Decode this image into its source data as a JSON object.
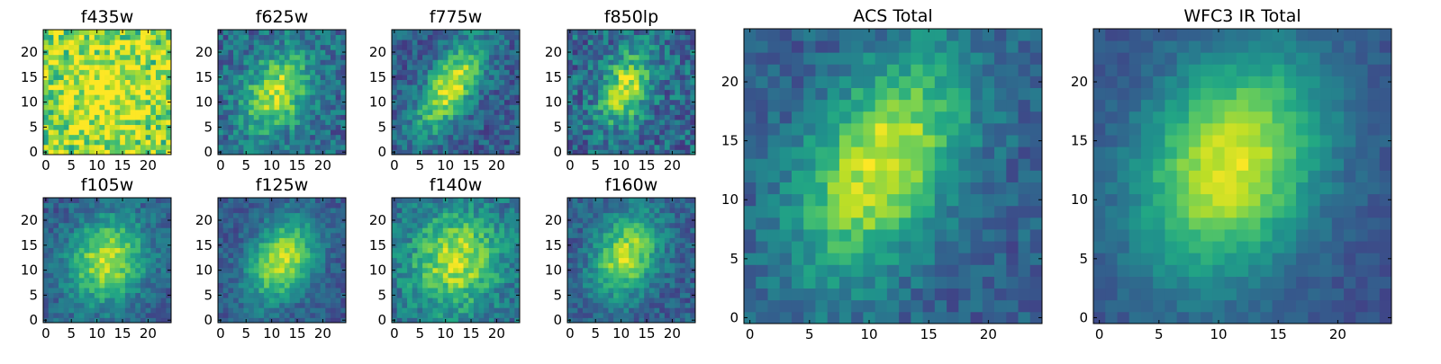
{
  "figure": {
    "colormap": "viridis",
    "background": "#ffffff",
    "pixel_grid": [
      25,
      25
    ]
  },
  "chart_data": [
    {
      "type": "heatmap",
      "title": "f435w",
      "xticks": [
        "0",
        "5",
        "10",
        "15",
        "20"
      ],
      "yticks": [
        "0",
        "5",
        "10",
        "15",
        "20"
      ],
      "center": [
        12,
        12
      ],
      "spread": [
        5,
        6
      ],
      "peak": 0.25,
      "base": 0.8,
      "noise": 0.5,
      "tilt": 0.0,
      "seed": 3
    },
    {
      "type": "heatmap",
      "title": "f625w",
      "xticks": [
        "0",
        "5",
        "10",
        "15",
        "20"
      ],
      "yticks": [
        "0",
        "5",
        "10",
        "15",
        "20"
      ],
      "center": [
        11,
        12
      ],
      "spread": [
        4,
        6
      ],
      "peak": 0.55,
      "base": 0.35,
      "noise": 0.35,
      "tilt": 0.45,
      "seed": 7
    },
    {
      "type": "heatmap",
      "title": "f775w",
      "xticks": [
        "0",
        "5",
        "10",
        "15",
        "20"
      ],
      "yticks": [
        "0",
        "5",
        "10",
        "15",
        "20"
      ],
      "center": [
        11,
        13
      ],
      "spread": [
        3,
        7
      ],
      "peak": 0.65,
      "base": 0.3,
      "noise": 0.3,
      "tilt": 0.55,
      "seed": 11
    },
    {
      "type": "heatmap",
      "title": "f850lp",
      "xticks": [
        "0",
        "5",
        "10",
        "15",
        "20"
      ],
      "yticks": [
        "0",
        "5",
        "10",
        "15",
        "20"
      ],
      "center": [
        11,
        13
      ],
      "spread": [
        3,
        5
      ],
      "peak": 0.6,
      "base": 0.35,
      "noise": 0.4,
      "tilt": 0.4,
      "seed": 13
    },
    {
      "type": "heatmap",
      "title": "f105w",
      "xticks": [
        "0",
        "5",
        "10",
        "15",
        "20"
      ],
      "yticks": [
        "0",
        "5",
        "10",
        "15",
        "20"
      ],
      "center": [
        12,
        12
      ],
      "spread": [
        5,
        6
      ],
      "peak": 0.6,
      "base": 0.3,
      "noise": 0.25,
      "tilt": 0.35,
      "seed": 17
    },
    {
      "type": "heatmap",
      "title": "f125w",
      "xticks": [
        "0",
        "5",
        "10",
        "15",
        "20"
      ],
      "yticks": [
        "0",
        "5",
        "10",
        "15",
        "20"
      ],
      "center": [
        12,
        12
      ],
      "spread": [
        4,
        6
      ],
      "peak": 0.65,
      "base": 0.28,
      "noise": 0.22,
      "tilt": 0.45,
      "seed": 19
    },
    {
      "type": "heatmap",
      "title": "f140w",
      "xticks": [
        "0",
        "5",
        "10",
        "15",
        "20"
      ],
      "yticks": [
        "0",
        "5",
        "10",
        "15",
        "20"
      ],
      "center": [
        12,
        12
      ],
      "spread": [
        6,
        7
      ],
      "peak": 0.55,
      "base": 0.35,
      "noise": 0.3,
      "tilt": 0.3,
      "seed": 23
    },
    {
      "type": "heatmap",
      "title": "f160w",
      "xticks": [
        "0",
        "5",
        "10",
        "15",
        "20"
      ],
      "yticks": [
        "0",
        "5",
        "10",
        "15",
        "20"
      ],
      "center": [
        11,
        13
      ],
      "spread": [
        4,
        6
      ],
      "peak": 0.6,
      "base": 0.3,
      "noise": 0.25,
      "tilt": 0.4,
      "seed": 29
    },
    {
      "type": "heatmap",
      "title": "ACS Total",
      "xticks": [
        "0",
        "5",
        "10",
        "15",
        "20"
      ],
      "yticks": [
        "0",
        "5",
        "10",
        "15",
        "20"
      ],
      "center": [
        11,
        13
      ],
      "spread": [
        4,
        7
      ],
      "peak": 0.65,
      "base": 0.3,
      "noise": 0.22,
      "tilt": 0.5,
      "seed": 31
    },
    {
      "type": "heatmap",
      "title": "WFC3 IR Total",
      "xticks": [
        "0",
        "5",
        "10",
        "15",
        "20"
      ],
      "yticks": [
        "0",
        "5",
        "10",
        "15",
        "20"
      ],
      "center": [
        11,
        13
      ],
      "spread": [
        5,
        7
      ],
      "peak": 0.7,
      "base": 0.25,
      "noise": 0.12,
      "tilt": 0.45,
      "seed": 37
    }
  ]
}
